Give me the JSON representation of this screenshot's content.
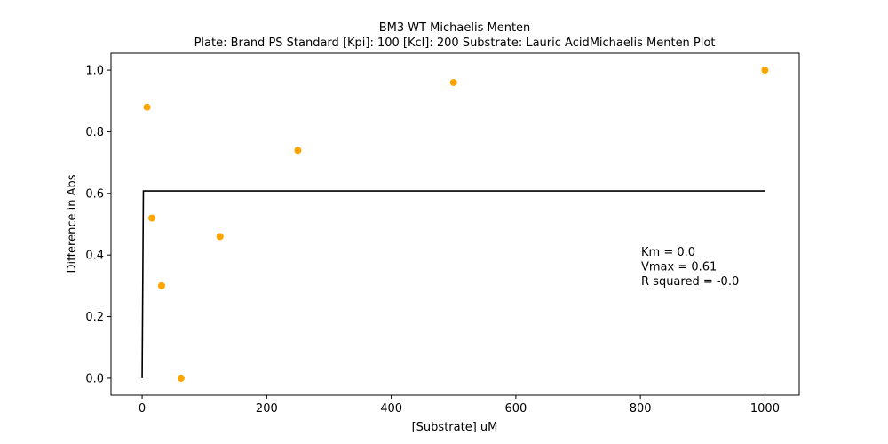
{
  "chart_data": {
    "type": "scatter",
    "title": "BM3 WT Michaelis Menten",
    "subtitle": "Plate: Brand PS Standard  [Kpi]: 100  [Kcl]: 200  Substrate: Lauric AcidMichaelis Menten Plot",
    "xlabel": "[Substrate] uM",
    "ylabel": "Difference in Abs",
    "xlim": [
      -50,
      1055
    ],
    "ylim": [
      -0.055,
      1.055
    ],
    "xticks": [
      0,
      200,
      400,
      600,
      800,
      1000
    ],
    "yticks": [
      0.0,
      0.2,
      0.4,
      0.6,
      0.8,
      1.0
    ],
    "xtick_labels": [
      "0",
      "200",
      "400",
      "600",
      "800",
      "1000"
    ],
    "ytick_labels": [
      "0.0",
      "0.2",
      "0.4",
      "0.6",
      "0.8",
      "1.0"
    ],
    "grid": false,
    "series": [
      {
        "kind": "scatter",
        "color": "#ffa500",
        "x": [
          7.8,
          15.6,
          31.25,
          62.5,
          125,
          250,
          500,
          1000
        ],
        "y": [
          0.88,
          0.52,
          0.3,
          0.0,
          0.46,
          0.74,
          0.96,
          1.0
        ]
      },
      {
        "kind": "line",
        "color": "#000000",
        "x": [
          0,
          2,
          1000
        ],
        "y": [
          0.0,
          0.608,
          0.608
        ]
      }
    ],
    "annotations": [
      "Km = 0.0",
      "Vmax = 0.61",
      "R squared = -0.0"
    ]
  }
}
